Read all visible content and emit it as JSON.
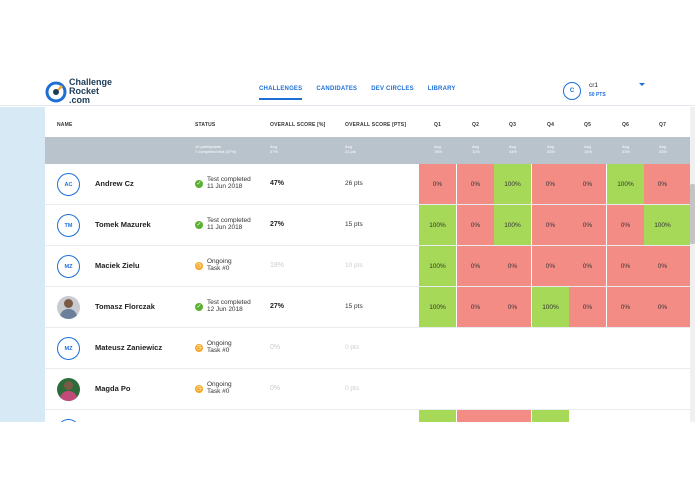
{
  "brand": {
    "name": "Challenge\nRocket\n.com"
  },
  "nav": [
    {
      "label": "CHALLENGES",
      "active": true
    },
    {
      "label": "CANDIDATES",
      "active": false
    },
    {
      "label": "DEV CIRCLES",
      "active": false
    },
    {
      "label": "LIBRARY",
      "active": false
    }
  ],
  "user": {
    "initial": "C",
    "name": "cr1",
    "points": "50 PTS"
  },
  "table": {
    "headers": {
      "name": "NAME",
      "status": "STATUS",
      "score_pct": "OVERALL SCORE [%]",
      "score_pts": "OVERALL SCORE [PTS]",
      "questions": [
        "Q1",
        "Q2",
        "Q3",
        "Q4",
        "Q5",
        "Q6",
        "Q7"
      ]
    },
    "averages": {
      "status": "10 participants\n7 completed test (37%)",
      "score_pct": "Avg\n37%",
      "score_pts": "Avg\n21 pts",
      "questions": [
        "Avg\n78%",
        "Avg\n11%",
        "Avg\n44%",
        "Avg\n33%",
        "Avg\n14%",
        "Avg\n33%",
        "Avg\n33%"
      ]
    },
    "rows": [
      {
        "initials": "AC",
        "avatar": "initials",
        "name": "Andrew Cz",
        "status": "done",
        "status_text": "Test completed\n11 Jun 2018",
        "score_pct": "47%",
        "score_pts": "26 pts",
        "muted": false,
        "cells": [
          [
            "0%",
            "red"
          ],
          [
            "0%",
            "red"
          ],
          [
            "100%",
            "green"
          ],
          [
            "0%",
            "red"
          ],
          [
            "0%",
            "red"
          ],
          [
            "100%",
            "green"
          ],
          [
            "0%",
            "red"
          ]
        ]
      },
      {
        "initials": "TM",
        "avatar": "initials",
        "name": "Tomek Mazurek",
        "status": "done",
        "status_text": "Test completed\n11 Jun 2018",
        "score_pct": "27%",
        "score_pts": "15 pts",
        "muted": false,
        "cells": [
          [
            "100%",
            "green"
          ],
          [
            "0%",
            "red"
          ],
          [
            "100%",
            "green"
          ],
          [
            "0%",
            "red"
          ],
          [
            "0%",
            "red"
          ],
          [
            "0%",
            "red"
          ],
          [
            "100%",
            "green"
          ]
        ]
      },
      {
        "initials": "MZ",
        "avatar": "initials",
        "name": "Maciek Zielu",
        "status": "ongoing",
        "status_text": "Ongoing\nTask #0",
        "score_pct": "18%",
        "score_pts": "10 pts",
        "muted": true,
        "cells": [
          [
            "100%",
            "green"
          ],
          [
            "0%",
            "red"
          ],
          [
            "0%",
            "red"
          ],
          [
            "0%",
            "red"
          ],
          [
            "0%",
            "red"
          ],
          [
            "0%",
            "red"
          ],
          [
            "0%",
            "red"
          ]
        ]
      },
      {
        "initials": "",
        "avatar": "photo",
        "name": "Tomasz Florczak",
        "status": "done",
        "status_text": "Test completed\n12 Jun 2018",
        "score_pct": "27%",
        "score_pts": "15 pts",
        "muted": false,
        "cells": [
          [
            "100%",
            "green"
          ],
          [
            "0%",
            "red"
          ],
          [
            "0%",
            "red"
          ],
          [
            "100%",
            "green"
          ],
          [
            "0%",
            "red"
          ],
          [
            "0%",
            "red"
          ],
          [
            "0%",
            "red"
          ]
        ]
      },
      {
        "initials": "MZ",
        "avatar": "initials",
        "name": "Mateusz Zaniewicz",
        "status": "ongoing",
        "status_text": "Ongoing\nTask #0",
        "score_pct": "0%",
        "score_pts": "0 pts",
        "muted": true,
        "cells": []
      },
      {
        "initials": "",
        "avatar": "photo-pink",
        "name": "Magda Po",
        "status": "ongoing",
        "status_text": "Ongoing\nTask #0",
        "score_pct": "0%",
        "score_pts": "0 pts",
        "muted": true,
        "cells": []
      }
    ]
  },
  "colors": {
    "accent": "#1d6fd6",
    "pass": "#a6d957",
    "fail": "#f48c86",
    "avg_row": "#b9c3cc"
  }
}
